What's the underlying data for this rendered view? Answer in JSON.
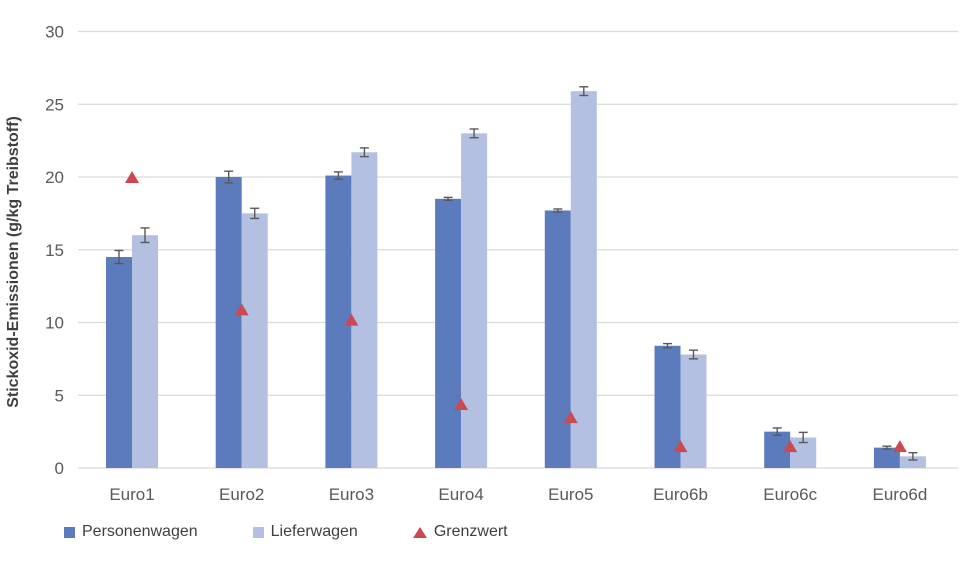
{
  "chart_data": {
    "type": "bar",
    "title": "",
    "ylabel": "Stickoxid-Emissionen (g/kg Treibstoff)",
    "xlabel": "",
    "ylim": [
      0,
      30
    ],
    "yticks": [
      0,
      5,
      10,
      15,
      20,
      25,
      30
    ],
    "grid": true,
    "legend_position": "bottom-left",
    "categories": [
      "Euro1",
      "Euro2",
      "Euro3",
      "Euro4",
      "Euro5",
      "Euro6b",
      "Euro6c",
      "Euro6d"
    ],
    "series": [
      {
        "name": "Personenwagen",
        "render": "bar",
        "color": "#5c7bbc",
        "values": [
          14.5,
          20.0,
          20.1,
          18.5,
          17.7,
          8.4,
          2.5,
          1.4
        ],
        "errors": [
          0.45,
          0.4,
          0.25,
          0.1,
          0.1,
          0.15,
          0.25,
          0.1
        ]
      },
      {
        "name": "Lieferwagen",
        "render": "bar",
        "color": "#b3c0e1",
        "values": [
          16.0,
          17.5,
          21.7,
          23.0,
          25.9,
          7.8,
          2.1,
          0.8
        ],
        "errors": [
          0.5,
          0.35,
          0.3,
          0.3,
          0.3,
          0.3,
          0.35,
          0.25
        ]
      },
      {
        "name": "Grenzwert",
        "render": "triangle-marker",
        "color": "#cb4950",
        "values": [
          20.0,
          10.9,
          10.2,
          4.4,
          3.5,
          1.5,
          1.5,
          1.5
        ]
      }
    ],
    "style": {
      "grid_color": "#d9d9d9",
      "axis_line_color": "#d9d9d9",
      "tick_label_color": "#595959",
      "error_bar_color": "#595959",
      "background": "#ffffff"
    }
  }
}
